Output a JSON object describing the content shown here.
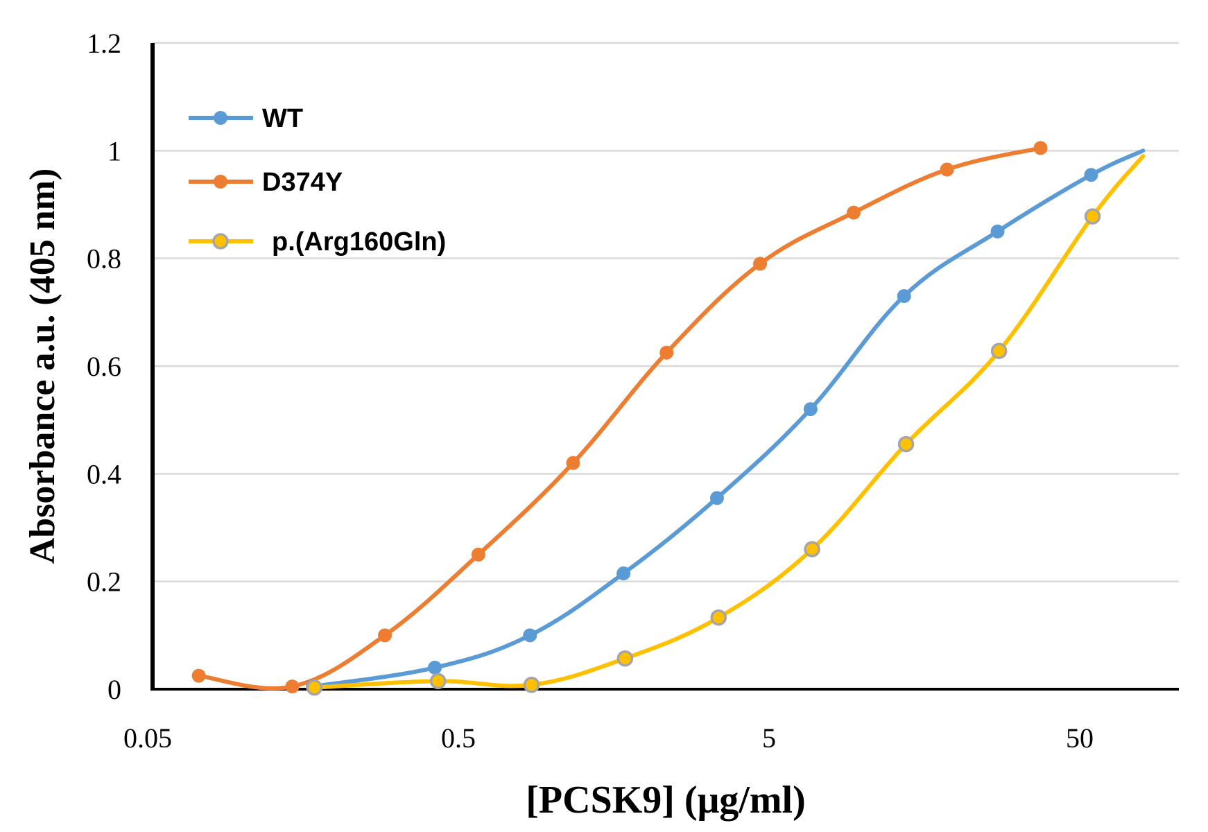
{
  "chart_data": {
    "type": "line",
    "title": "",
    "xlabel": "[PCSK9] (μg/ml)",
    "ylabel": "Absorbance a.u.  (405 nm)",
    "xscale": "log",
    "xlim": [
      0.05,
      80
    ],
    "ylim": [
      0,
      1.2
    ],
    "xticks": [
      0.05,
      0.5,
      5,
      50
    ],
    "xtick_labels": [
      "0.05",
      "0.5",
      "5",
      "50"
    ],
    "yticks": [
      0,
      0.2,
      0.4,
      0.6,
      0.8,
      1,
      1.2
    ],
    "ytick_labels": [
      "0",
      "0.2",
      "0.4",
      "0.6",
      "0.8",
      "1",
      "1.2"
    ],
    "grid": "horizontal",
    "legend_position": "top-left",
    "series": [
      {
        "name": "WT",
        "color": "#5b9bd5",
        "marker_edge": "#5b9bd5",
        "x": [
          0.17,
          0.42,
          0.85,
          1.7,
          3.4,
          6.8,
          13.6,
          27.2,
          54.4,
          80
        ],
        "y": [
          0.005,
          0.04,
          0.1,
          0.215,
          0.355,
          0.52,
          0.73,
          0.85,
          0.955,
          1.0
        ],
        "marker_count": 9
      },
      {
        "name": "D374Y",
        "color": "#ed7d31",
        "marker_edge": "#ed7d31",
        "x": [
          0.073,
          0.146,
          0.29,
          0.58,
          1.17,
          2.34,
          4.68,
          9.36,
          18.7,
          37.4
        ],
        "y": [
          0.025,
          0.005,
          0.1,
          0.25,
          0.42,
          0.625,
          0.79,
          0.885,
          0.965,
          1.005
        ],
        "marker_count": 10
      },
      {
        "name": "p.(Arg160Gln)",
        "color": "#ffc000",
        "marker_edge": "#a5a5a5",
        "x": [
          0.172,
          0.43,
          0.86,
          1.72,
          3.44,
          6.88,
          13.8,
          27.5,
          55,
          80
        ],
        "y": [
          0.003,
          0.015,
          0.008,
          0.057,
          0.133,
          0.26,
          0.455,
          0.628,
          0.878,
          0.99
        ],
        "marker_count": 9
      }
    ]
  }
}
